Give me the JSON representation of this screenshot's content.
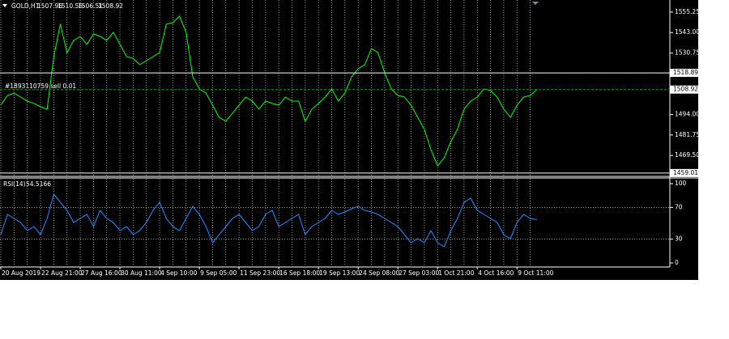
{
  "chart_data": [
    {
      "type": "line",
      "title": "GOLD,H1",
      "ohlc": [
        1507.96,
        1510.56,
        1506.51,
        1508.92
      ],
      "annotation": "#1893110759 sell 0.01",
      "categories": [
        "20 Aug 2019",
        null,
        null,
        null,
        null,
        null,
        "22 Aug 21:00",
        null,
        null,
        null,
        null,
        null,
        "27 Aug 16:00",
        null,
        null,
        null,
        null,
        null,
        "30 Aug 11:00",
        null,
        null,
        null,
        null,
        null,
        "4 Sep 10:00",
        null,
        null,
        null,
        null,
        null,
        "9 Sep 05:00",
        null,
        null,
        null,
        null,
        null,
        "11 Sep 23:00",
        null,
        null,
        null,
        null,
        null,
        "16 Sep 18:00",
        null,
        null,
        null,
        null,
        null,
        "19 Sep 13:00",
        null,
        null,
        null,
        null,
        null,
        "24 Sep 08:00",
        null,
        null,
        null,
        null,
        null,
        "27 Sep 03:00",
        null,
        null,
        null,
        null,
        null,
        "1 Oct 21:00",
        null,
        null,
        null,
        null,
        null,
        "4 Oct 16:00",
        null,
        null,
        null,
        null,
        null,
        "9 Oct 11:00",
        null,
        null,
        null
      ],
      "series": [
        {
          "name": "GOLD,H1",
          "color": "#00ff00",
          "values": [
            1499.6,
            1505.4,
            1506.8,
            1504.4,
            1502.0,
            1500.6,
            1498.6,
            1497.2,
            1528.6,
            1548.0,
            1531.0,
            1538.3,
            1540.7,
            1535.9,
            1542.2,
            1540.7,
            1538.3,
            1543.1,
            1535.9,
            1528.6,
            1527.6,
            1523.8,
            1526.2,
            1528.6,
            1531.0,
            1548.0,
            1548.9,
            1552.8,
            1543.1,
            1516.5,
            1509.3,
            1506.8,
            1499.6,
            1492.3,
            1489.9,
            1494.7,
            1499.6,
            1504.4,
            1502.0,
            1497.2,
            1502.0,
            1500.6,
            1499.6,
            1504.4,
            1502.0,
            1502.0,
            1489.9,
            1497.2,
            1500.6,
            1504.4,
            1509.3,
            1502.0,
            1506.8,
            1516.5,
            1521.4,
            1523.8,
            1533.4,
            1531.0,
            1518.9,
            1509.3,
            1505.4,
            1504.4,
            1499.6,
            1492.3,
            1485.1,
            1473.0,
            1463.3,
            1468.1,
            1477.8,
            1485.1,
            1497.2,
            1502.0,
            1504.4,
            1509.3,
            1508.3,
            1504.4,
            1497.2,
            1492.3,
            1499.6,
            1504.4,
            1505.4,
            1508.92
          ]
        }
      ],
      "hlines": [
        1518.89,
        1459.01
      ],
      "ylim": [
        1457.5,
        1561.5
      ],
      "yticks": [
        {
          "value": 1555.25,
          "label": "1555.25"
        },
        {
          "value": 1543.0,
          "label": "1543.00"
        },
        {
          "value": 1530.75,
          "label": "1530.75"
        },
        {
          "value": 1494.0,
          "label": "1494.00"
        },
        {
          "value": 1481.75,
          "label": "1481.75"
        },
        {
          "value": 1469.5,
          "label": "1469.50"
        }
      ],
      "grid": true
    },
    {
      "type": "line",
      "title": "RSI(14)",
      "series": [
        {
          "name": "RSI(14)",
          "color": "#1e90ff",
          "values": [
            35.7,
            61.2,
            56.1,
            51.0,
            40.8,
            45.9,
            35.7,
            56.1,
            86.7,
            76.5,
            66.3,
            51.0,
            56.1,
            61.2,
            45.9,
            66.3,
            56.1,
            51.0,
            40.8,
            45.9,
            35.7,
            40.8,
            51.0,
            66.3,
            76.5,
            56.1,
            45.9,
            40.8,
            56.1,
            71.4,
            61.2,
            45.9,
            25.5,
            35.7,
            45.9,
            56.1,
            61.2,
            51.0,
            40.8,
            45.9,
            61.2,
            66.3,
            45.9,
            51.0,
            56.1,
            61.2,
            35.7,
            45.9,
            51.0,
            56.1,
            66.3,
            61.2,
            64.3,
            68.4,
            71.4,
            66.3,
            64.3,
            61.2,
            56.1,
            51.0,
            45.9,
            35.7,
            25.5,
            30.6,
            25.5,
            40.8,
            25.5,
            20.4,
            40.8,
            56.1,
            76.5,
            81.6,
            66.3,
            61.2,
            56.1,
            51.0,
            35.7,
            30.6,
            51.0,
            61.2,
            56.1,
            54.5166
          ]
        }
      ],
      "ylim": [
        0,
        100
      ],
      "yticks": [
        0,
        30,
        70,
        100
      ]
    }
  ]
}
